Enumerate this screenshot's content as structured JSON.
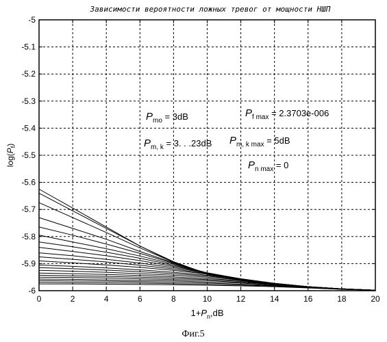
{
  "chart_data": {
    "type": "line",
    "title": "Зависимости вероятности ложных тревог от мощности НШП",
    "xlabel": "1+P_n,dB",
    "ylabel": "log(P_f)",
    "xlim": [
      0,
      20
    ],
    "ylim": [
      -6,
      -5
    ],
    "xticks": [
      0,
      2,
      4,
      6,
      8,
      10,
      12,
      14,
      16,
      18,
      20
    ],
    "yticks": [
      -5,
      -5.1,
      -5.2,
      -5.3,
      -5.4,
      -5.5,
      -5.6,
      -5.7,
      -5.8,
      -5.9,
      -6
    ],
    "grid": true,
    "series": [
      {
        "x": [
          0,
          2,
          4,
          6,
          8,
          10,
          12,
          14,
          16,
          18,
          20
        ],
        "y": [
          -5.625,
          -5.695,
          -5.765,
          -5.835,
          -5.895,
          -5.94,
          -5.962,
          -5.978,
          -5.988,
          -5.994,
          -5.998
        ]
      },
      {
        "x": [
          0,
          2,
          4,
          6,
          8,
          10,
          12,
          14,
          16,
          18,
          20
        ],
        "y": [
          -5.64,
          -5.705,
          -5.77,
          -5.835,
          -5.893,
          -5.938,
          -5.961,
          -5.977,
          -5.987,
          -5.994,
          -5.998
        ]
      },
      {
        "x": [
          0,
          2,
          4,
          6,
          8,
          10,
          12,
          14,
          16,
          18,
          20
        ],
        "y": [
          -5.675,
          -5.73,
          -5.785,
          -5.842,
          -5.895,
          -5.937,
          -5.96,
          -5.976,
          -5.987,
          -5.994,
          -5.998
        ]
      },
      {
        "x": [
          0,
          2,
          4,
          6,
          8,
          10,
          12,
          14,
          16,
          18,
          20
        ],
        "y": [
          -5.73,
          -5.77,
          -5.81,
          -5.855,
          -5.897,
          -5.936,
          -5.959,
          -5.976,
          -5.987,
          -5.994,
          -5.998
        ]
      },
      {
        "x": [
          0,
          2,
          4,
          6,
          8,
          10,
          12,
          14,
          16,
          18,
          20
        ],
        "y": [
          -5.765,
          -5.795,
          -5.828,
          -5.862,
          -5.899,
          -5.935,
          -5.958,
          -5.975,
          -5.986,
          -5.994,
          -5.998
        ]
      },
      {
        "x": [
          0,
          2,
          4,
          6,
          8,
          10,
          12,
          14,
          16,
          18,
          20
        ],
        "y": [
          -5.795,
          -5.82,
          -5.845,
          -5.872,
          -5.902,
          -5.934,
          -5.957,
          -5.975,
          -5.986,
          -5.994,
          -5.998
        ]
      },
      {
        "x": [
          0,
          2,
          4,
          6,
          8,
          10,
          12,
          14,
          16,
          18,
          20
        ],
        "y": [
          -5.82,
          -5.838,
          -5.858,
          -5.88,
          -5.906,
          -5.934,
          -5.957,
          -5.974,
          -5.986,
          -5.993,
          -5.998
        ]
      },
      {
        "x": [
          0,
          2,
          4,
          6,
          8,
          10,
          12,
          14,
          16,
          18,
          20
        ],
        "y": [
          -5.84,
          -5.855,
          -5.871,
          -5.889,
          -5.91,
          -5.934,
          -5.956,
          -5.974,
          -5.985,
          -5.993,
          -5.998
        ]
      },
      {
        "x": [
          0,
          2,
          4,
          6,
          8,
          10,
          12,
          14,
          16,
          18,
          20
        ],
        "y": [
          -5.86,
          -5.871,
          -5.884,
          -5.898,
          -5.915,
          -5.935,
          -5.956,
          -5.973,
          -5.985,
          -5.993,
          -5.998
        ]
      },
      {
        "x": [
          0,
          2,
          4,
          6,
          8,
          10,
          12,
          14,
          16,
          18,
          20
        ],
        "y": [
          -5.875,
          -5.884,
          -5.894,
          -5.906,
          -5.92,
          -5.937,
          -5.956,
          -5.973,
          -5.985,
          -5.993,
          -5.998
        ]
      },
      {
        "x": [
          0,
          2,
          4,
          6,
          8,
          10,
          12,
          14,
          16,
          18,
          20
        ],
        "y": [
          -5.89,
          -5.897,
          -5.905,
          -5.914,
          -5.925,
          -5.939,
          -5.956,
          -5.973,
          -5.985,
          -5.993,
          -5.998
        ]
      },
      {
        "x": [
          0,
          2,
          4,
          6,
          8,
          10,
          12,
          14,
          16,
          18,
          20
        ],
        "y": [
          -5.905,
          -5.91,
          -5.916,
          -5.923,
          -5.932,
          -5.943,
          -5.957,
          -5.973,
          -5.985,
          -5.993,
          -5.998
        ]
      },
      {
        "x": [
          0,
          2,
          4,
          6,
          8,
          10,
          12,
          14,
          16,
          18,
          20
        ],
        "y": [
          -5.915,
          -5.919,
          -5.924,
          -5.93,
          -5.937,
          -5.946,
          -5.958,
          -5.973,
          -5.985,
          -5.993,
          -5.998
        ]
      },
      {
        "x": [
          0,
          2,
          4,
          6,
          8,
          10,
          12,
          14,
          16,
          18,
          20
        ],
        "y": [
          -5.925,
          -5.928,
          -5.932,
          -5.937,
          -5.943,
          -5.95,
          -5.96,
          -5.974,
          -5.985,
          -5.993,
          -5.998
        ]
      },
      {
        "x": [
          0,
          2,
          4,
          6,
          8,
          10,
          12,
          14,
          16,
          18,
          20
        ],
        "y": [
          -5.935,
          -5.937,
          -5.94,
          -5.944,
          -5.949,
          -5.955,
          -5.963,
          -5.975,
          -5.986,
          -5.993,
          -5.998
        ]
      },
      {
        "x": [
          0,
          2,
          4,
          6,
          8,
          10,
          12,
          14,
          16,
          18,
          20
        ],
        "y": [
          -5.943,
          -5.945,
          -5.947,
          -5.95,
          -5.954,
          -5.959,
          -5.966,
          -5.976,
          -5.986,
          -5.993,
          -5.998
        ]
      },
      {
        "x": [
          0,
          2,
          4,
          6,
          8,
          10,
          12,
          14,
          16,
          18,
          20
        ],
        "y": [
          -5.95,
          -5.951,
          -5.953,
          -5.956,
          -5.959,
          -5.963,
          -5.969,
          -5.977,
          -5.987,
          -5.994,
          -5.998
        ]
      },
      {
        "x": [
          0,
          2,
          4,
          6,
          8,
          10,
          12,
          14,
          16,
          18,
          20
        ],
        "y": [
          -5.957,
          -5.958,
          -5.96,
          -5.962,
          -5.964,
          -5.968,
          -5.972,
          -5.979,
          -5.987,
          -5.994,
          -5.998
        ]
      },
      {
        "x": [
          0,
          2,
          4,
          6,
          8,
          10,
          12,
          14,
          16,
          18,
          20
        ],
        "y": [
          -5.963,
          -5.964,
          -5.965,
          -5.967,
          -5.969,
          -5.972,
          -5.976,
          -5.981,
          -5.988,
          -5.994,
          -5.998
        ]
      },
      {
        "x": [
          0,
          2,
          4,
          6,
          8,
          10,
          12,
          14,
          16,
          18,
          20
        ],
        "y": [
          -5.969,
          -5.97,
          -5.971,
          -5.972,
          -5.974,
          -5.976,
          -5.979,
          -5.983,
          -5.989,
          -5.995,
          -5.998
        ]
      },
      {
        "x": [
          0,
          2,
          4,
          6,
          8,
          10,
          12,
          14,
          16,
          18,
          20
        ],
        "y": [
          -5.975,
          -5.975,
          -5.976,
          -5.977,
          -5.978,
          -5.98,
          -5.982,
          -5.985,
          -5.99,
          -5.995,
          -5.999
        ]
      }
    ],
    "annotations": {
      "pmo": {
        "sym": "P",
        "sub": "mo",
        "val": " = 3dB"
      },
      "pfmax": {
        "sym": "P",
        "sub": "f max",
        "val": " = 2.3703e-006"
      },
      "pmk": {
        "sym": "P",
        "sub": "m, k",
        "val": " = 3. . .23dB"
      },
      "pmkmax": {
        "sym": "P",
        "sub": "m, k max",
        "val": " = 5dB"
      },
      "pnmax": {
        "sym": "P",
        "sub": "n max",
        "val": " = 0"
      }
    },
    "caption": "Фиг.5"
  }
}
